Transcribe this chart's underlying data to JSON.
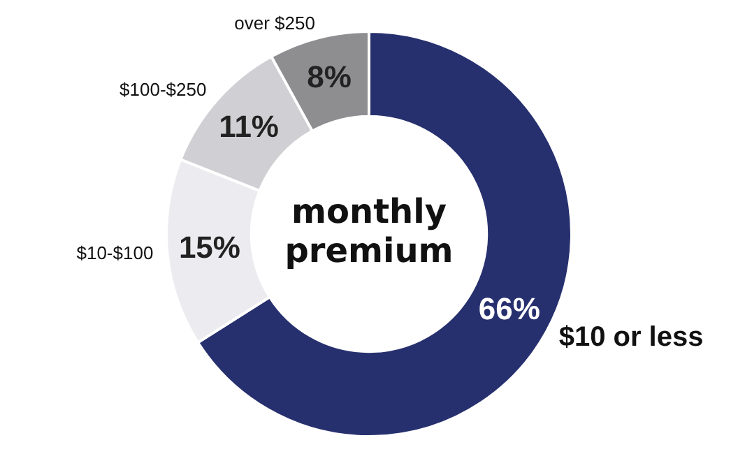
{
  "chart_data": {
    "type": "donut",
    "title": "monthly premium",
    "categories": [
      "$10 or less",
      "$10-$100",
      "$100-$250",
      "over $250"
    ],
    "values": [
      66,
      15,
      11,
      8
    ],
    "colors": [
      "#27306e",
      "#ececf0",
      "#d0d0d4",
      "#8e8e91"
    ],
    "value_labels": [
      "66%",
      "15%",
      "11%",
      "8%"
    ],
    "legend": false
  }
}
